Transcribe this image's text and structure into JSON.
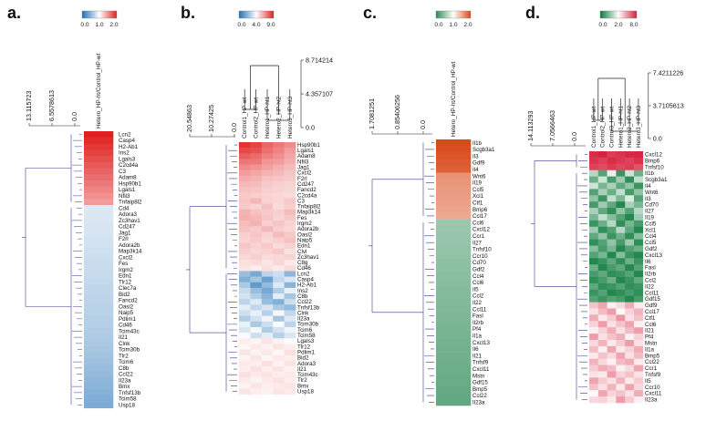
{
  "panels": [
    {
      "label": "a.",
      "legend_ticks": [
        "0.0",
        "1.0",
        "2.0"
      ],
      "legend_colors": [
        "#1e6fb5",
        "#ffffff",
        "#e02020"
      ],
      "dendro_ticks": [
        "13.115723",
        "6.5578613",
        "0.0"
      ],
      "columns": [
        "Hetero_HP-ht/Control_HP-wt"
      ],
      "genes": [
        "Lcn2",
        "Casp4",
        "H2-Ab1",
        "Ins2",
        "Lgals3",
        "C2cd4a",
        "C3",
        "Adam8",
        "Hsp90b1",
        "Lgals1",
        "Nfil3",
        "Tnfaip8l2",
        "Cd4",
        "Adora3",
        "Zc3hav1",
        "Cd247",
        "Jag1",
        "F2rl",
        "Adora2b",
        "Map3k14",
        "Cxcl2",
        "Fes",
        "Irgm2",
        "Edn1",
        "Tlr12",
        "Clec7a",
        "Bid2",
        "Fancd2",
        "Oasl2",
        "Naip5",
        "Pdlim1",
        "Cd46",
        "Tcim43c",
        "Il21",
        "Clnk",
        "Tcim30b",
        "Tlr2",
        "Tcim6",
        "C8b",
        "Ccl22",
        "Il23a",
        "Bmx",
        "Tnfsf13b",
        "Tcim58",
        "Usp18"
      ],
      "values": [
        [
          2.0
        ],
        [
          1.95
        ],
        [
          1.9
        ],
        [
          1.85
        ],
        [
          1.8
        ],
        [
          1.75
        ],
        [
          1.7
        ],
        [
          1.65
        ],
        [
          1.6
        ],
        [
          1.55
        ],
        [
          1.5
        ],
        [
          1.45
        ],
        [
          0.85
        ],
        [
          0.84
        ],
        [
          0.83
        ],
        [
          0.82
        ],
        [
          0.81
        ],
        [
          0.8
        ],
        [
          0.79
        ],
        [
          0.78
        ],
        [
          0.77
        ],
        [
          0.76
        ],
        [
          0.75
        ],
        [
          0.74
        ],
        [
          0.73
        ],
        [
          0.72
        ],
        [
          0.71
        ],
        [
          0.7
        ],
        [
          0.69
        ],
        [
          0.68
        ],
        [
          0.67
        ],
        [
          0.66
        ],
        [
          0.65
        ],
        [
          0.64
        ],
        [
          0.62
        ],
        [
          0.6
        ],
        [
          0.58
        ],
        [
          0.56
        ],
        [
          0.54
        ],
        [
          0.52
        ],
        [
          0.5
        ],
        [
          0.48
        ],
        [
          0.46
        ],
        [
          0.44
        ],
        [
          0.42
        ]
      ]
    },
    {
      "label": "b.",
      "legend_ticks": [
        "0.0",
        "4.0",
        "9.0"
      ],
      "legend_colors": [
        "#1e6fb5",
        "#ffffff",
        "#e02020"
      ],
      "dendro_ticks": [
        "20.54863",
        "10.27425",
        "0.0"
      ],
      "col_dendro_ticks": [
        "8.714214",
        "4.357107",
        "0.0"
      ],
      "columns": [
        "Control1_HP-wt",
        "Control2_HP-wt",
        "Hetero1_HP-ht1",
        "Hetero2_HP-ht2",
        "Hetero3_HP-ht3"
      ],
      "genes": [
        "Hsp90b1",
        "Lgals1",
        "Adam8",
        "Nfil3",
        "Jag1",
        "Cxcl2",
        "F2rl",
        "Cd247",
        "Fancd2",
        "C2cd4a",
        "C3",
        "Tnfaip8l2",
        "Map3k14",
        "Fes",
        "Irgm2",
        "Adora2b",
        "Oasl2",
        "Naip5",
        "Edn1",
        "Clvl",
        "Zc3hav1",
        "C8g",
        "Cd46",
        "Lcn2",
        "Casp4",
        "H2-Ab1",
        "Ins2",
        "C8b",
        "Ccl22",
        "Tnfsf13b",
        "Clnk",
        "Il23a",
        "Tcim30b",
        "Tcim6",
        "Tcim58",
        "Lgals3",
        "Tlr12",
        "Pdlim1",
        "Bid2",
        "Adora3",
        "Il21",
        "Tcim43c",
        "Tlr2",
        "Bmx",
        "Usp18"
      ],
      "values": [
        [
          8.6,
          8.2,
          7.4,
          7.0,
          6.6
        ],
        [
          8.1,
          7.9,
          7.2,
          6.8,
          6.2
        ],
        [
          7.6,
          7.3,
          6.8,
          6.5,
          6.0
        ],
        [
          7.1,
          7.0,
          6.4,
          6.2,
          5.8
        ],
        [
          6.6,
          6.4,
          6.1,
          5.8,
          5.5
        ],
        [
          6.2,
          6.0,
          5.7,
          5.6,
          5.3
        ],
        [
          5.9,
          5.7,
          5.4,
          5.3,
          5.2
        ],
        [
          5.6,
          5.5,
          5.2,
          5.1,
          5.0
        ],
        [
          5.4,
          5.3,
          5.1,
          5.0,
          4.9
        ],
        [
          5.2,
          5.1,
          5.0,
          4.9,
          4.8
        ],
        [
          5.3,
          5.6,
          5.0,
          4.9,
          5.2
        ],
        [
          5.2,
          5.0,
          5.4,
          4.8,
          5.1
        ],
        [
          5.7,
          5.4,
          5.2,
          5.1,
          5.5
        ],
        [
          5.8,
          5.6,
          5.3,
          5.0,
          5.2
        ],
        [
          5.5,
          5.7,
          5.1,
          5.3,
          5.0
        ],
        [
          5.4,
          5.2,
          5.6,
          5.1,
          4.9
        ],
        [
          5.1,
          5.3,
          5.0,
          5.5,
          5.2
        ],
        [
          5.0,
          5.2,
          4.9,
          5.1,
          5.4
        ],
        [
          5.3,
          5.0,
          5.2,
          4.8,
          5.0
        ],
        [
          5.1,
          4.9,
          5.0,
          5.2,
          4.7
        ],
        [
          4.9,
          5.1,
          4.8,
          4.9,
          5.0
        ],
        [
          4.7,
          4.8,
          4.6,
          4.9,
          4.5
        ],
        [
          4.6,
          4.4,
          4.7,
          4.5,
          4.8
        ],
        [
          2.2,
          1.6,
          2.8,
          3.1,
          2.0
        ],
        [
          1.8,
          2.4,
          1.4,
          2.9,
          3.3
        ],
        [
          2.5,
          1.2,
          2.1,
          3.4,
          1.9
        ],
        [
          3.0,
          2.2,
          1.6,
          2.6,
          3.6
        ],
        [
          3.2,
          2.6,
          1.9,
          3.5,
          2.4
        ],
        [
          2.8,
          3.4,
          2.2,
          1.8,
          3.1
        ],
        [
          3.5,
          2.9,
          3.3,
          2.5,
          2.1
        ],
        [
          3.1,
          3.6,
          2.7,
          3.8,
          2.9
        ],
        [
          2.6,
          3.2,
          3.7,
          2.4,
          3.4
        ],
        [
          3.6,
          2.5,
          3.1,
          3.9,
          2.8
        ],
        [
          3.3,
          3.8,
          2.6,
          3.2,
          3.7
        ],
        [
          3.9,
          3.1,
          3.5,
          2.7,
          3.3
        ],
        [
          4.4,
          4.2,
          4.6,
          4.3,
          4.1
        ],
        [
          4.2,
          4.5,
          4.3,
          4.6,
          4.4
        ],
        [
          4.6,
          4.3,
          4.5,
          4.2,
          4.7
        ],
        [
          4.3,
          4.6,
          4.2,
          4.5,
          4.4
        ],
        [
          4.5,
          4.4,
          4.7,
          4.3,
          4.6
        ],
        [
          4.4,
          4.7,
          4.4,
          4.6,
          4.3
        ],
        [
          4.7,
          4.5,
          4.6,
          4.4,
          4.5
        ],
        [
          4.5,
          4.3,
          4.5,
          4.7,
          4.4
        ],
        [
          4.3,
          4.6,
          4.4,
          4.5,
          4.6
        ],
        [
          4.6,
          4.4,
          4.3,
          4.6,
          4.5
        ]
      ]
    },
    {
      "label": "c.",
      "legend_ticks": [
        "0.0",
        "1.0",
        "2.0"
      ],
      "legend_colors": [
        "#2e8b57",
        "#ffffff",
        "#d94a1a"
      ],
      "dendro_ticks": [
        "1.7081251",
        "0.85406256",
        "0.0"
      ],
      "columns": [
        "Hetero_HP-ht/Control_HP-wt"
      ],
      "genes": [
        "Il1b",
        "Scgb3a1",
        "Il3",
        "Gdf9",
        "Il4",
        "Wnt6",
        "Il19",
        "Ccl5",
        "Xcl1",
        "Ctf1",
        "Bmp6",
        "Ccl17",
        "Ccl6",
        "Cxcl12",
        "Ccr1",
        "Il27",
        "Tnfsf10",
        "Ccr10",
        "Cd70",
        "Gdf2",
        "Ccl4",
        "Ccl6",
        "Il5",
        "Ccl2",
        "Il22",
        "Ccl11",
        "Fasl",
        "Il2rb",
        "Pf4",
        "Il1a",
        "Cxcl13",
        "Il6",
        "Il21",
        "Tnfsf9",
        "Cxcl11",
        "Mstn",
        "Gdf15",
        "Bmp5",
        "Ccl22",
        "Il23a"
      ],
      "values": [
        [
          2.0
        ],
        [
          1.97
        ],
        [
          1.94
        ],
        [
          1.91
        ],
        [
          1.88
        ],
        [
          1.6
        ],
        [
          1.58
        ],
        [
          1.56
        ],
        [
          1.54
        ],
        [
          1.52
        ],
        [
          1.5
        ],
        [
          1.48
        ],
        [
          0.52
        ],
        [
          0.51
        ],
        [
          0.5
        ],
        [
          0.49
        ],
        [
          0.48
        ],
        [
          0.47
        ],
        [
          0.46
        ],
        [
          0.45
        ],
        [
          0.44
        ],
        [
          0.43
        ],
        [
          0.42
        ],
        [
          0.41
        ],
        [
          0.4
        ],
        [
          0.39
        ],
        [
          0.38
        ],
        [
          0.37
        ],
        [
          0.36
        ],
        [
          0.35
        ],
        [
          0.34
        ],
        [
          0.33
        ],
        [
          0.32
        ],
        [
          0.31
        ],
        [
          0.3
        ],
        [
          0.29
        ],
        [
          0.28
        ],
        [
          0.27
        ],
        [
          0.26
        ],
        [
          0.25
        ]
      ]
    },
    {
      "label": "d.",
      "legend_ticks": [
        "0.0",
        "2.0",
        "8.0"
      ],
      "legend_colors": [
        "#0b7a3a",
        "#ffffff",
        "#d61f3a"
      ],
      "dendro_ticks": [
        "14.113293",
        "7.0566463",
        "0.0"
      ],
      "col_dendro_ticks": [
        "7.4211226",
        "3.7105613",
        "0.0"
      ],
      "columns": [
        "Control1_HP-wt",
        "Control2_HP-wt",
        "Control3_HP-wt",
        "Hetero1_HP-ht1",
        "Hetero2_HP-ht2",
        "Hetero3_HP-ht3"
      ],
      "genes": [
        "Cxcl12",
        "Bmp6",
        "Tnfsf10",
        "Il1b",
        "Scgb3a1",
        "Il4",
        "Wnt6",
        "Il3",
        "Cd70",
        "Il27",
        "Il19",
        "Ccl5",
        "Xcl1",
        "Ccl4",
        "Ccl5",
        "Gdf2",
        "Cxcl13",
        "Il6",
        "Fasl",
        "Il2rb",
        "Ccl2",
        "Il22",
        "Ccl11",
        "Gdf15",
        "Gdf9",
        "Ccl17",
        "Ctf1",
        "Ccl6",
        "Il21",
        "Pf4",
        "Mstn",
        "Il1a",
        "Bmp5",
        "Ccl22",
        "Ccr1",
        "Tnfsf9",
        "Il5",
        "Ccr10",
        "Cxcl11",
        "Il23a"
      ],
      "values": [
        [
          7.6,
          7.9,
          7.2,
          7.4,
          7.7,
          7.8
        ],
        [
          7.4,
          7.1,
          7.6,
          7.3,
          7.0,
          7.5
        ],
        [
          7.0,
          6.8,
          7.3,
          6.9,
          7.2,
          6.6
        ],
        [
          1.4,
          0.6,
          1.8,
          0.4,
          1.6,
          0.8
        ],
        [
          0.8,
          1.6,
          0.5,
          1.2,
          0.3,
          1.5
        ],
        [
          1.6,
          0.9,
          1.3,
          0.7,
          1.1,
          0.4
        ],
        [
          0.6,
          1.3,
          0.8,
          1.5,
          0.5,
          1.1
        ],
        [
          1.1,
          0.4,
          1.5,
          0.9,
          1.7,
          0.6
        ],
        [
          0.5,
          1.2,
          0.7,
          0.2,
          1.3,
          0.9
        ],
        [
          1.3,
          0.7,
          0.3,
          1.1,
          0.6,
          1.4
        ],
        [
          0.9,
          1.5,
          1.0,
          0.6,
          0.2,
          1.2
        ],
        [
          0.4,
          0.8,
          1.4,
          0.3,
          0.9,
          0.5
        ],
        [
          1.2,
          0.3,
          0.6,
          1.4,
          0.7,
          0.2
        ],
        [
          0.7,
          1.1,
          0.4,
          0.8,
          0.3,
          1.0
        ],
        [
          0.3,
          0.6,
          1.1,
          0.5,
          1.2,
          0.3
        ],
        [
          1.0,
          0.5,
          0.9,
          0.2,
          0.6,
          0.8
        ],
        [
          0.6,
          0.9,
          0.2,
          1.0,
          0.4,
          0.2
        ],
        [
          0.2,
          0.4,
          0.7,
          0.3,
          0.8,
          0.4
        ],
        [
          0.8,
          0.2,
          0.5,
          0.7,
          0.2,
          0.6
        ],
        [
          0.5,
          0.7,
          0.3,
          0.4,
          0.6,
          0.2
        ],
        [
          0.3,
          0.5,
          0.8,
          0.2,
          0.4,
          0.7
        ],
        [
          0.7,
          0.3,
          0.4,
          0.6,
          0.3,
          0.4
        ],
        [
          0.4,
          0.6,
          0.2,
          0.3,
          0.5,
          0.3
        ],
        [
          0.6,
          0.4,
          0.6,
          0.5,
          0.2,
          0.5
        ],
        [
          3.6,
          4.4,
          2.4,
          3.0,
          4.2,
          2.6
        ],
        [
          2.8,
          3.8,
          4.6,
          2.2,
          3.2,
          4.0
        ],
        [
          4.2,
          2.6,
          3.4,
          4.8,
          2.8,
          3.6
        ],
        [
          3.2,
          4.6,
          2.8,
          3.6,
          4.4,
          2.4
        ],
        [
          2.4,
          3.2,
          4.2,
          2.8,
          3.8,
          4.6
        ],
        [
          4.6,
          2.8,
          3.6,
          4.2,
          2.4,
          3.2
        ],
        [
          3.0,
          4.0,
          2.6,
          3.4,
          4.6,
          2.8
        ],
        [
          3.8,
          2.4,
          4.4,
          2.6,
          3.2,
          4.2
        ],
        [
          2.6,
          3.6,
          3.0,
          4.4,
          2.8,
          3.8
        ],
        [
          4.0,
          3.0,
          2.4,
          3.8,
          4.2,
          2.6
        ],
        [
          3.4,
          4.2,
          3.8,
          2.4,
          3.0,
          4.4
        ],
        [
          2.8,
          2.6,
          4.6,
          3.2,
          3.6,
          2.8
        ],
        [
          4.4,
          3.4,
          2.8,
          4.0,
          2.6,
          3.4
        ],
        [
          3.6,
          2.8,
          4.0,
          2.6,
          4.4,
          3.0
        ],
        [
          2.2,
          4.4,
          3.2,
          3.6,
          2.8,
          4.2
        ],
        [
          3.0,
          3.2,
          2.6,
          4.6,
          3.4,
          2.4
        ]
      ]
    }
  ]
}
